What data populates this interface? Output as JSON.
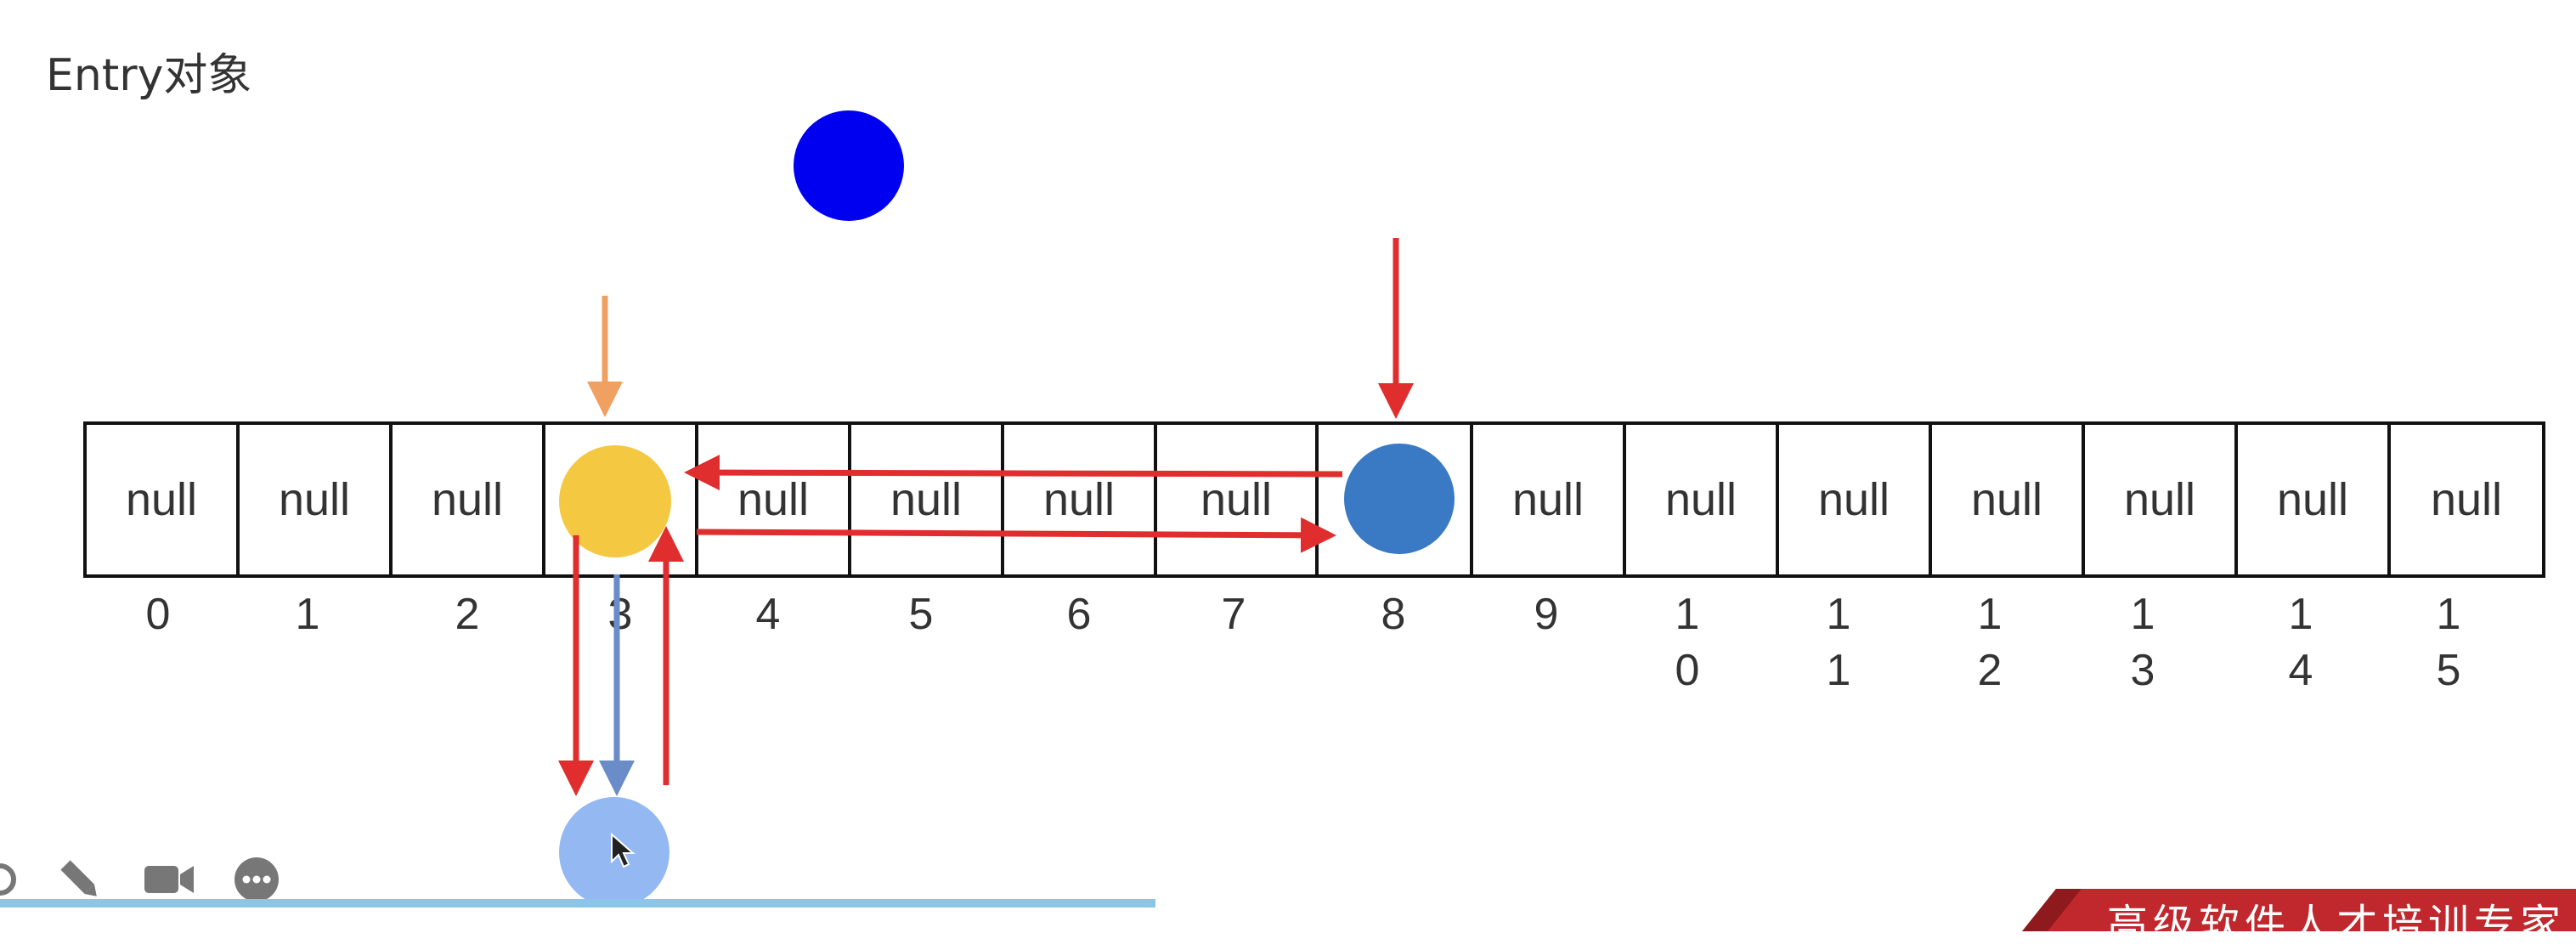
{
  "title": "Entry对象",
  "array": {
    "cells": [
      "null",
      "null",
      "null",
      "",
      "null",
      "null",
      "null",
      "null",
      "",
      "null",
      "null",
      "null",
      "null",
      "null",
      "null",
      "null"
    ],
    "indices": [
      [
        "0"
      ],
      [
        "1"
      ],
      [
        "2"
      ],
      [
        "3"
      ],
      [
        "4"
      ],
      [
        "5"
      ],
      [
        "6"
      ],
      [
        "7"
      ],
      [
        "8"
      ],
      [
        "9"
      ],
      [
        "1",
        "0"
      ],
      [
        "1",
        "1"
      ],
      [
        "1",
        "2"
      ],
      [
        "1",
        "3"
      ],
      [
        "1",
        "4"
      ],
      [
        "1",
        "5"
      ]
    ]
  },
  "nodes": {
    "floating": {
      "color": "#0000f0"
    },
    "slot3": {
      "color": "#f5c842"
    },
    "slot8": {
      "color": "#3a7ac4"
    },
    "chained": {
      "color": "#93b8f2"
    }
  },
  "arrows": {
    "red": "#e02d2d",
    "orange": "#f0a060",
    "blue": "#6a8cc8"
  },
  "toolbar": {
    "icons": [
      "circle-icon",
      "pencil-icon",
      "video-camera-icon",
      "more-options-icon"
    ]
  },
  "banner": {
    "text": "高级软件人才培训专家",
    "color": "#c0282d"
  }
}
